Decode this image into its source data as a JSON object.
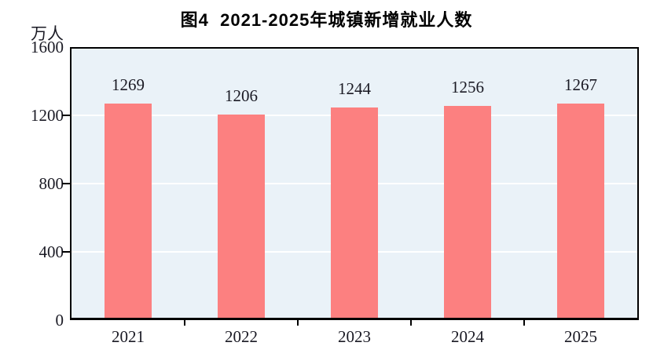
{
  "figure": {
    "title": "图4  2021-2025年城镇新增就业人数",
    "unit_label": "万人"
  },
  "chart_data": {
    "type": "bar",
    "title": "图4  2021-2025年城镇新增就业人数",
    "ylabel": "万人",
    "xlabel": "",
    "categories": [
      "2021",
      "2022",
      "2023",
      "2024",
      "2025"
    ],
    "values": [
      1269,
      1206,
      1244,
      1256,
      1267
    ],
    "ylim": [
      0,
      1600
    ],
    "yticks": [
      0,
      400,
      800,
      1200,
      1600
    ],
    "grid": true,
    "legend_position": "none",
    "colors": {
      "bar": "#FC8080",
      "plot_background": "#EAF2F8",
      "grid_line": "#FFFFFF",
      "axis_border": "#000000",
      "label_text": "#1A1A24",
      "title_text": "#000000"
    }
  }
}
